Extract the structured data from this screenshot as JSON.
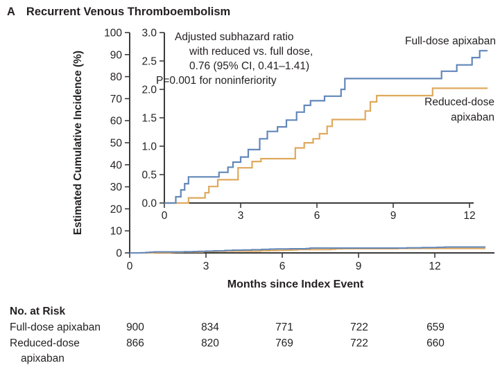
{
  "panel_label": "A",
  "title": "Recurrent Venous Thromboembolism",
  "colors": {
    "full_dose": "#6287b9",
    "reduced_dose": "#dfa85c",
    "axis": "#3a3a3a",
    "text": "#231f20"
  },
  "annotation": {
    "lines": [
      "Adjusted subhazard ratio",
      "with reduced vs. full dose,",
      "0.76 (95% CI, 0.41–1.41)",
      "P=0.001 for noninferiority"
    ]
  },
  "legend": {
    "full_dose": "Full-dose apixaban",
    "reduced_dose_line1": "Reduced-dose",
    "reduced_dose_line2": "apixaban"
  },
  "chart_data": {
    "type": "line",
    "subtype": "cumulative-incidence-step-curves-with-inset",
    "title": "Recurrent Venous Thromboembolism",
    "xlabel": "Months since Index Event",
    "ylabel": "Estimated Cumulative Incidence (%)",
    "grid": false,
    "main_axis": {
      "xticks": [
        "0",
        "3",
        "6",
        "9",
        "12"
      ],
      "yticks": [
        "0",
        "10",
        "20",
        "30",
        "40",
        "50",
        "60",
        "70",
        "80",
        "90",
        "100"
      ],
      "xlim": [
        0,
        14.3
      ],
      "ylim": [
        0,
        100
      ]
    },
    "inset_axis": {
      "xticks": [
        "0",
        "3",
        "6",
        "9",
        "12"
      ],
      "yticks": [
        "0.0",
        "0.5",
        "1.0",
        "1.5",
        "2.0",
        "2.5",
        "3.0"
      ],
      "xlim": [
        0,
        12.2
      ],
      "ylim": [
        0,
        3.0
      ]
    },
    "series": [
      {
        "name": "Full-dose apixaban",
        "color": "#6287b9",
        "end_month": 12.7,
        "steps": [
          [
            0,
            0
          ],
          [
            0.45,
            0.11
          ],
          [
            0.65,
            0.23
          ],
          [
            0.8,
            0.34
          ],
          [
            0.95,
            0.46
          ],
          [
            2.15,
            0.54
          ],
          [
            2.5,
            0.63
          ],
          [
            2.7,
            0.72
          ],
          [
            3.0,
            0.81
          ],
          [
            3.3,
            0.94
          ],
          [
            3.75,
            1.13
          ],
          [
            4.05,
            1.26
          ],
          [
            4.45,
            1.34
          ],
          [
            4.8,
            1.46
          ],
          [
            5.2,
            1.6
          ],
          [
            5.5,
            1.72
          ],
          [
            5.75,
            1.8
          ],
          [
            6.3,
            1.88
          ],
          [
            6.95,
            2.0
          ],
          [
            7.1,
            2.19
          ],
          [
            10.9,
            2.32
          ],
          [
            11.5,
            2.43
          ],
          [
            12.1,
            2.56
          ],
          [
            12.4,
            2.68
          ]
        ]
      },
      {
        "name": "Reduced-dose apixaban",
        "color": "#dfa85c",
        "end_month": 12.7,
        "steps": [
          [
            0,
            0
          ],
          [
            0.95,
            0.09
          ],
          [
            1.6,
            0.18
          ],
          [
            1.75,
            0.29
          ],
          [
            2.1,
            0.41
          ],
          [
            2.9,
            0.62
          ],
          [
            3.45,
            0.73
          ],
          [
            3.8,
            0.78
          ],
          [
            5.15,
            0.97
          ],
          [
            5.5,
            1.06
          ],
          [
            5.85,
            1.13
          ],
          [
            6.1,
            1.22
          ],
          [
            6.4,
            1.35
          ],
          [
            6.6,
            1.47
          ],
          [
            7.9,
            1.62
          ],
          [
            8.1,
            1.78
          ],
          [
            8.35,
            1.89
          ],
          [
            10.55,
            2.02
          ]
        ]
      }
    ],
    "annotation": "Adjusted subhazard ratio with reduced vs. full dose, 0.76 (95% CI, 0.41–1.41); P=0.001 for noninferiority",
    "legend_position": "right-of-curves"
  },
  "at_risk": {
    "heading": "No. at Risk",
    "timepoints": [
      "0",
      "3",
      "6",
      "9",
      "12"
    ],
    "rows": [
      {
        "label": "Full-dose apixaban",
        "label2": "",
        "counts": [
          "900",
          "834",
          "771",
          "722",
          "659"
        ]
      },
      {
        "label": "Reduced-dose",
        "label2": "apixaban",
        "counts": [
          "866",
          "820",
          "769",
          "722",
          "660"
        ]
      }
    ]
  }
}
